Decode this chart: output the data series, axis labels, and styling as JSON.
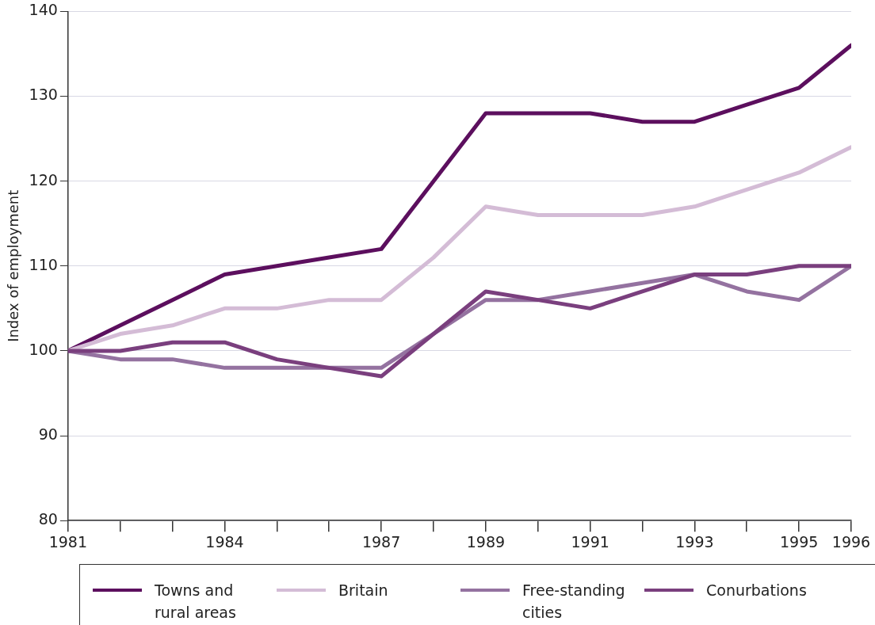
{
  "chart_data": {
    "type": "line",
    "ylabel": "Index of employment",
    "x": [
      1981,
      1982,
      1983,
      1984,
      1985,
      1986,
      1987,
      1988,
      1989,
      1990,
      1991,
      1992,
      1993,
      1994,
      1995,
      1996
    ],
    "series": [
      {
        "name": "Towns and rural areas",
        "color": "#5c0f5e",
        "values": [
          100,
          103,
          106,
          109,
          110,
          111,
          112,
          120,
          128,
          128,
          128,
          127,
          127,
          129,
          131,
          136
        ]
      },
      {
        "name": "Britain",
        "color": "#d4bcd6",
        "values": [
          100,
          102,
          103,
          105,
          105,
          106,
          106,
          111,
          117,
          116,
          116,
          116,
          117,
          119,
          121,
          124
        ]
      },
      {
        "name": "Free-standing cities",
        "color": "#9472a0",
        "values": [
          100,
          99,
          99,
          98,
          98,
          98,
          98,
          102,
          106,
          106,
          107,
          108,
          109,
          107,
          106,
          110
        ]
      },
      {
        "name": "Conurbations",
        "color": "#7a3f7e",
        "values": [
          100,
          100,
          101,
          101,
          99,
          98,
          97,
          102,
          107,
          106,
          105,
          107,
          109,
          109,
          110,
          110
        ]
      }
    ],
    "xlim": [
      1981,
      1996
    ],
    "xticks": [
      1981,
      {
        "value": 1982,
        "label": null
      },
      {
        "value": 1983,
        "label": null
      },
      1984,
      {
        "value": 1985,
        "label": null
      },
      {
        "value": 1986,
        "label": null
      },
      1987,
      {
        "value": 1988,
        "label": null
      },
      1989,
      {
        "value": 1990,
        "label": null
      },
      1991,
      {
        "value": 1992,
        "label": null
      },
      1993,
      {
        "value": 1994,
        "label": null
      },
      1995,
      1996
    ],
    "ylim": [
      80,
      140
    ],
    "yticks": [
      80,
      90,
      100,
      110,
      120,
      130,
      140
    ],
    "grid": "y",
    "legend": "bottom",
    "marker": "none",
    "line_style": "solid"
  }
}
